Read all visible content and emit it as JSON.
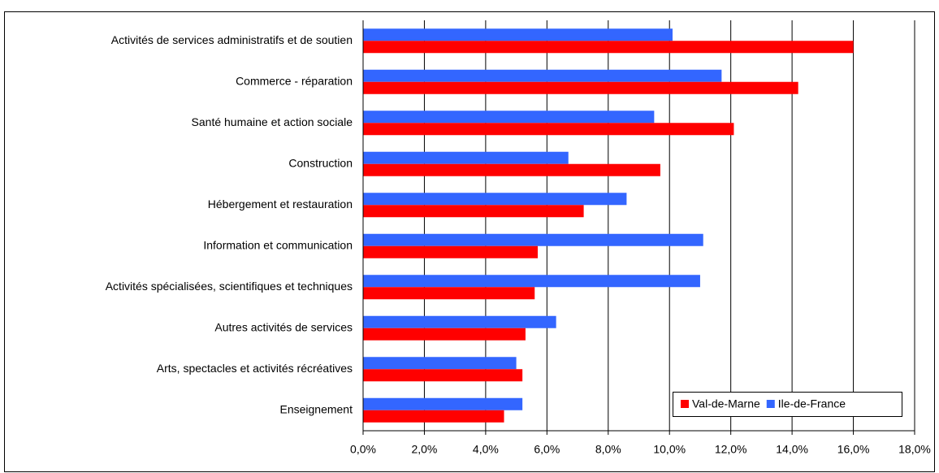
{
  "chart_data": {
    "type": "hbar",
    "categories": [
      "Activités de services administratifs et de soutien",
      "Commerce -  réparation",
      "Santé humaine et action sociale",
      "Construction",
      "Hébergement et restauration",
      "Information et communication",
      "Activités spécialisées, scientifiques et techniques",
      "Autres activités de services",
      "Arts, spectacles et activités récréatives",
      "Enseignement"
    ],
    "series": [
      {
        "name": "Val-de-Marne",
        "color": "#ff0000",
        "values": [
          16.0,
          14.2,
          12.1,
          9.7,
          7.2,
          5.7,
          5.6,
          5.3,
          5.2,
          4.6
        ]
      },
      {
        "name": "Ile-de-France",
        "color": "#3366ff",
        "values": [
          10.1,
          11.7,
          9.5,
          6.7,
          8.6,
          11.1,
          11.0,
          6.3,
          5.0,
          5.2
        ]
      }
    ],
    "xlim": [
      0,
      18
    ],
    "xticks": [
      {
        "value": 0,
        "label": "0,0%"
      },
      {
        "value": 2,
        "label": "2,0%"
      },
      {
        "value": 4,
        "label": "4,0%"
      },
      {
        "value": 6,
        "label": "6,0%"
      },
      {
        "value": 8,
        "label": "8,0%"
      },
      {
        "value": 10,
        "label": "10,0%"
      },
      {
        "value": 12,
        "label": "12,0%"
      },
      {
        "value": 14,
        "label": "14,0%"
      },
      {
        "value": 16,
        "label": "16,0%"
      },
      {
        "value": 18,
        "label": "18,0%"
      }
    ],
    "grid": true,
    "legend": "lower right"
  }
}
